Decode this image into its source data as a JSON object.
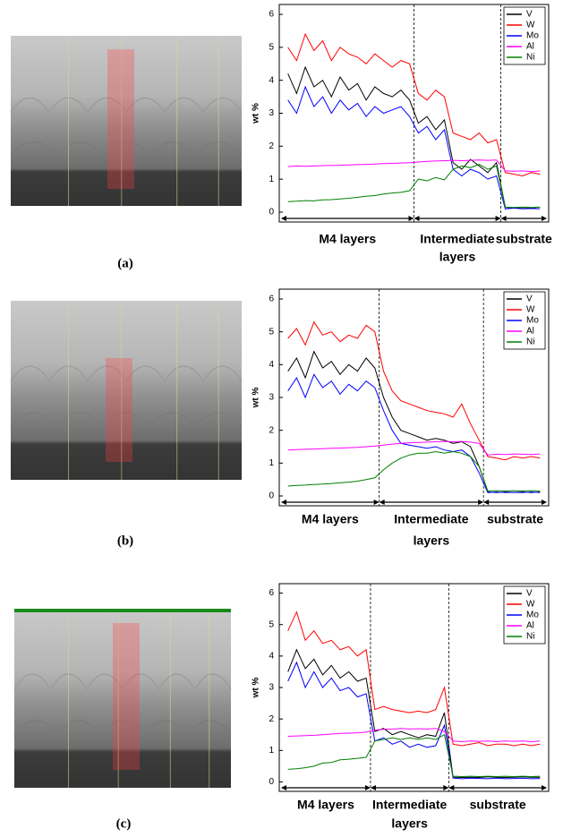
{
  "chart_data": [
    {
      "type": "line",
      "panel_label": "(a)",
      "ylabel": "wt %",
      "x": [
        0,
        1,
        2,
        3,
        4,
        5,
        6,
        7,
        8,
        9,
        10,
        11,
        12,
        13,
        14,
        15,
        16,
        17,
        18,
        19,
        20,
        21,
        22,
        23,
        24,
        25,
        26,
        27,
        28,
        29
      ],
      "xlim": [
        -1,
        30
      ],
      "ylim": [
        -0.3,
        6.3
      ],
      "yticks": [
        0,
        1,
        2,
        3,
        4,
        5,
        6
      ],
      "boundaries": [
        14.5,
        24.5
      ],
      "regions": [
        [
          "M4 layers"
        ],
        [
          "Intermediate",
          "layers"
        ],
        [
          "substrate"
        ]
      ],
      "legend": "upper right",
      "series": [
        {
          "name": "V",
          "color": "#000000",
          "values": [
            4.2,
            3.6,
            4.4,
            3.8,
            4.0,
            3.5,
            4.1,
            3.7,
            3.9,
            3.4,
            3.8,
            3.6,
            3.5,
            3.7,
            3.4,
            2.7,
            2.9,
            2.5,
            2.8,
            1.5,
            1.3,
            1.6,
            1.4,
            1.2,
            1.5,
            0.15,
            0.12,
            0.14,
            0.13,
            0.15
          ]
        },
        {
          "name": "W",
          "color": "#ff0000",
          "values": [
            5.0,
            4.6,
            5.4,
            4.9,
            5.2,
            4.6,
            5.0,
            4.8,
            4.7,
            4.5,
            4.8,
            4.6,
            4.4,
            4.6,
            4.5,
            3.6,
            3.4,
            3.7,
            3.5,
            2.4,
            2.3,
            2.2,
            2.4,
            2.1,
            2.2,
            1.2,
            1.15,
            1.1,
            1.2,
            1.15
          ]
        },
        {
          "name": "Mo",
          "color": "#0000ff",
          "values": [
            3.4,
            3.0,
            3.8,
            3.2,
            3.5,
            3.0,
            3.4,
            3.1,
            3.3,
            2.9,
            3.2,
            3.0,
            3.1,
            3.2,
            2.9,
            2.4,
            2.6,
            2.2,
            2.5,
            1.3,
            1.1,
            1.3,
            1.2,
            1.0,
            1.1,
            0.1,
            0.12,
            0.1,
            0.11,
            0.1
          ]
        },
        {
          "name": "Al",
          "color": "#ff00ff",
          "values": [
            1.38,
            1.4,
            1.39,
            1.4,
            1.41,
            1.42,
            1.42,
            1.43,
            1.44,
            1.45,
            1.46,
            1.47,
            1.48,
            1.49,
            1.5,
            1.52,
            1.54,
            1.55,
            1.56,
            1.57,
            1.56,
            1.57,
            1.58,
            1.57,
            1.58,
            1.25,
            1.24,
            1.25,
            1.23,
            1.25
          ]
        },
        {
          "name": "Ni",
          "color": "#008000",
          "values": [
            0.32,
            0.33,
            0.35,
            0.34,
            0.37,
            0.38,
            0.4,
            0.42,
            0.45,
            0.48,
            0.5,
            0.55,
            0.58,
            0.6,
            0.65,
            1.0,
            0.95,
            1.05,
            0.98,
            1.3,
            1.4,
            1.35,
            1.45,
            1.3,
            1.4,
            0.15,
            0.14,
            0.15,
            0.14,
            0.15
          ]
        }
      ]
    },
    {
      "type": "line",
      "panel_label": "(b)",
      "ylabel": "wt %",
      "x": [
        0,
        1,
        2,
        3,
        4,
        5,
        6,
        7,
        8,
        9,
        10,
        11,
        12,
        13,
        14,
        15,
        16,
        17,
        18,
        19,
        20,
        21,
        22,
        23,
        24,
        25,
        26,
        27,
        28,
        29
      ],
      "xlim": [
        -1,
        30
      ],
      "ylim": [
        -0.3,
        6.3
      ],
      "yticks": [
        0,
        1,
        2,
        3,
        4,
        5,
        6
      ],
      "boundaries": [
        10.5,
        22.5
      ],
      "regions": [
        [
          "M4 layers"
        ],
        [
          "Intermediate",
          "layers"
        ],
        [
          "substrate"
        ]
      ],
      "legend": "upper right",
      "series": [
        {
          "name": "V",
          "color": "#000000",
          "values": [
            3.8,
            4.2,
            3.6,
            4.4,
            3.9,
            4.1,
            3.7,
            4.0,
            3.8,
            4.2,
            3.9,
            3.0,
            2.4,
            2.0,
            1.9,
            1.8,
            1.7,
            1.75,
            1.7,
            1.6,
            1.65,
            1.5,
            0.9,
            0.12,
            0.1,
            0.12,
            0.11,
            0.12,
            0.1,
            0.12
          ]
        },
        {
          "name": "W",
          "color": "#ff0000",
          "values": [
            4.8,
            5.1,
            4.6,
            5.3,
            4.9,
            5.0,
            4.7,
            4.9,
            4.8,
            5.2,
            5.0,
            3.8,
            3.2,
            2.9,
            2.8,
            2.7,
            2.6,
            2.55,
            2.5,
            2.4,
            2.8,
            2.2,
            1.7,
            1.2,
            1.15,
            1.1,
            1.2,
            1.15,
            1.2,
            1.15
          ]
        },
        {
          "name": "Mo",
          "color": "#0000ff",
          "values": [
            3.2,
            3.6,
            3.0,
            3.7,
            3.3,
            3.5,
            3.1,
            3.4,
            3.2,
            3.5,
            3.3,
            2.6,
            2.0,
            1.6,
            1.55,
            1.5,
            1.45,
            1.5,
            1.4,
            1.35,
            1.4,
            1.2,
            0.7,
            0.1,
            0.12,
            0.1,
            0.11,
            0.1,
            0.12,
            0.1
          ]
        },
        {
          "name": "Al",
          "color": "#ff00ff",
          "values": [
            1.4,
            1.41,
            1.42,
            1.43,
            1.44,
            1.45,
            1.46,
            1.47,
            1.48,
            1.5,
            1.52,
            1.55,
            1.58,
            1.6,
            1.62,
            1.63,
            1.64,
            1.65,
            1.66,
            1.65,
            1.66,
            1.64,
            1.6,
            1.25,
            1.27,
            1.26,
            1.28,
            1.27,
            1.26,
            1.28
          ]
        },
        {
          "name": "Ni",
          "color": "#008000",
          "values": [
            0.3,
            0.32,
            0.33,
            0.35,
            0.36,
            0.38,
            0.4,
            0.42,
            0.45,
            0.5,
            0.55,
            0.8,
            1.0,
            1.15,
            1.25,
            1.3,
            1.3,
            1.35,
            1.3,
            1.35,
            1.3,
            1.2,
            0.9,
            0.15,
            0.16,
            0.15,
            0.16,
            0.15,
            0.16,
            0.15
          ]
        }
      ]
    },
    {
      "type": "line",
      "panel_label": "(c)",
      "ylabel": "wt %",
      "x": [
        0,
        1,
        2,
        3,
        4,
        5,
        6,
        7,
        8,
        9,
        10,
        11,
        12,
        13,
        14,
        15,
        16,
        17,
        18,
        19,
        20,
        21,
        22,
        23,
        24,
        25,
        26,
        27,
        28,
        29
      ],
      "xlim": [
        -1,
        30
      ],
      "ylim": [
        -0.3,
        6.3
      ],
      "yticks": [
        0,
        1,
        2,
        3,
        4,
        5,
        6
      ],
      "boundaries": [
        9.5,
        18.5
      ],
      "regions": [
        [
          "M4 layers"
        ],
        [
          "Intermediate",
          "layers"
        ],
        [
          "substrate"
        ]
      ],
      "legend": "upper right",
      "series": [
        {
          "name": "V",
          "color": "#000000",
          "values": [
            3.5,
            4.2,
            3.6,
            3.9,
            3.4,
            3.7,
            3.3,
            3.5,
            3.2,
            3.3,
            1.6,
            1.7,
            1.5,
            1.6,
            1.5,
            1.4,
            1.5,
            1.45,
            2.2,
            0.15,
            0.14,
            0.15,
            0.14,
            0.16,
            0.15,
            0.14,
            0.15,
            0.16,
            0.15,
            0.15
          ]
        },
        {
          "name": "W",
          "color": "#ff0000",
          "values": [
            4.8,
            5.4,
            4.5,
            4.8,
            4.4,
            4.5,
            4.2,
            4.3,
            4.0,
            4.2,
            2.3,
            2.4,
            2.3,
            2.25,
            2.2,
            2.25,
            2.2,
            2.3,
            3.0,
            1.2,
            1.15,
            1.2,
            1.25,
            1.15,
            1.2,
            1.2,
            1.15,
            1.2,
            1.15,
            1.2
          ]
        },
        {
          "name": "Mo",
          "color": "#0000ff",
          "values": [
            3.2,
            3.8,
            3.0,
            3.5,
            3.0,
            3.3,
            2.9,
            3.0,
            2.7,
            2.8,
            1.3,
            1.4,
            1.2,
            1.3,
            1.1,
            1.2,
            1.1,
            1.15,
            1.8,
            0.12,
            0.1,
            0.12,
            0.11,
            0.1,
            0.12,
            0.1,
            0.11,
            0.12,
            0.1,
            0.11
          ]
        },
        {
          "name": "Al",
          "color": "#ff00ff",
          "values": [
            1.45,
            1.46,
            1.47,
            1.48,
            1.5,
            1.52,
            1.54,
            1.55,
            1.56,
            1.58,
            1.65,
            1.67,
            1.68,
            1.7,
            1.68,
            1.69,
            1.68,
            1.7,
            1.6,
            1.3,
            1.28,
            1.3,
            1.29,
            1.3,
            1.28,
            1.3,
            1.29,
            1.3,
            1.28,
            1.3
          ]
        },
        {
          "name": "Ni",
          "color": "#008000",
          "values": [
            0.4,
            0.42,
            0.45,
            0.5,
            0.6,
            0.62,
            0.7,
            0.72,
            0.75,
            0.78,
            1.3,
            1.35,
            1.4,
            1.35,
            1.4,
            1.35,
            1.4,
            1.35,
            1.5,
            0.18,
            0.17,
            0.18,
            0.17,
            0.18,
            0.17,
            0.18,
            0.17,
            0.18,
            0.17,
            0.18
          ]
        }
      ]
    }
  ]
}
